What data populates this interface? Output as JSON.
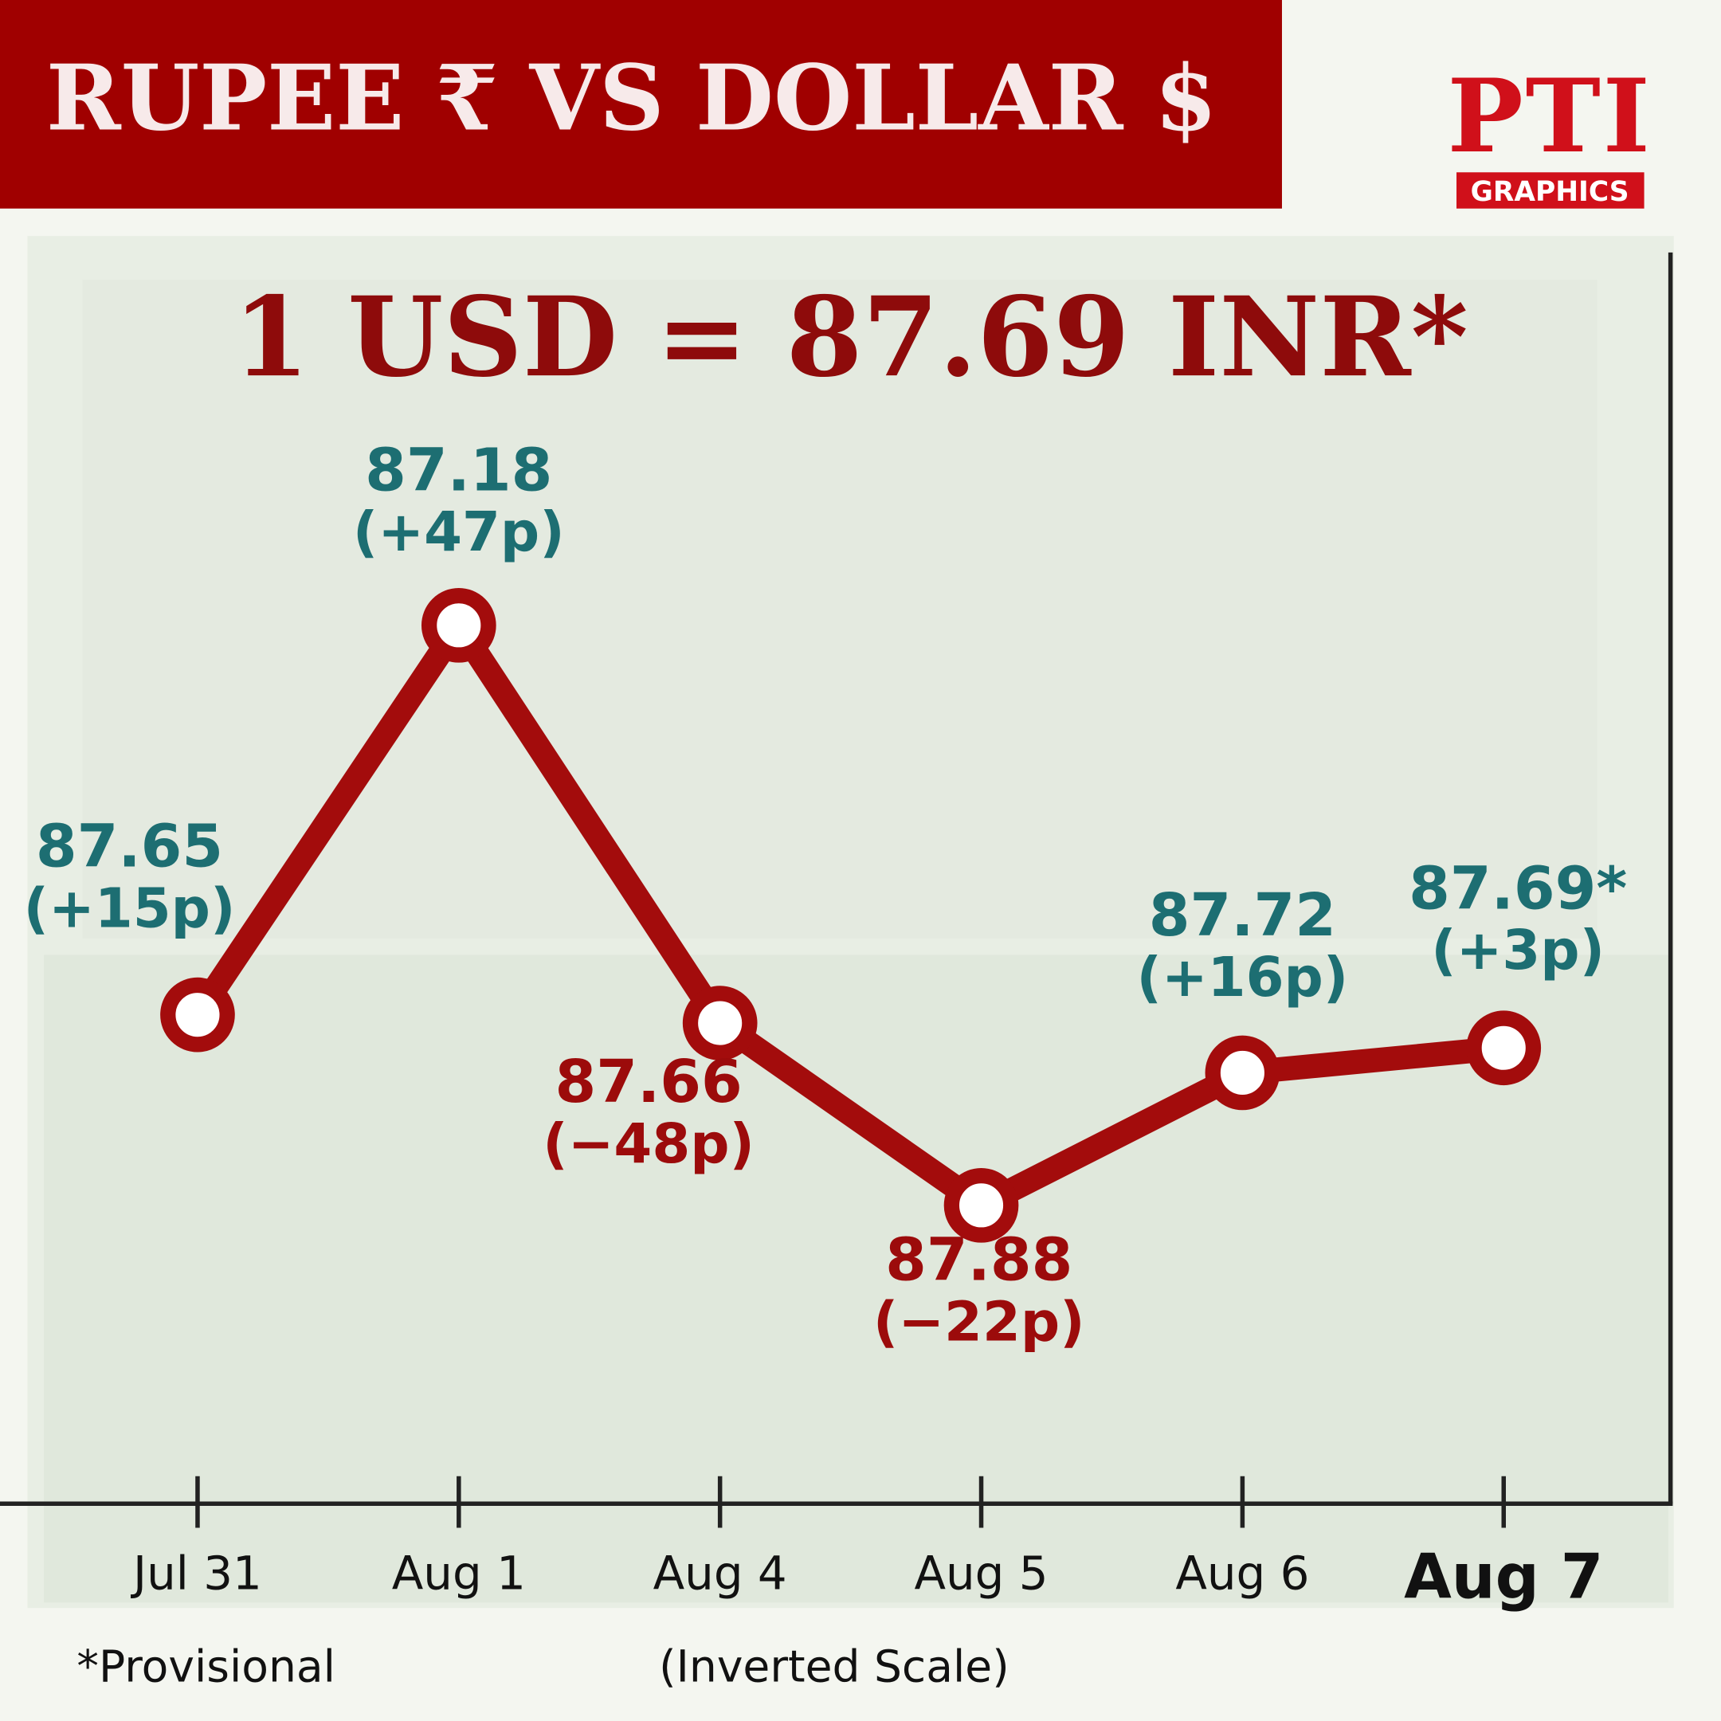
{
  "chart_data": {
    "type": "line",
    "title": "RUPEE ₹   VS   DOLLAR $",
    "headline": "1 USD = 87.69 INR*",
    "logo": {
      "text": "PTI",
      "caption": "GRAPHICS"
    },
    "categories": [
      "Jul 31",
      "Aug 1",
      "Aug 4",
      "Aug 5",
      "Aug 6",
      "Aug 7"
    ],
    "values": [
      87.65,
      87.18,
      87.66,
      87.88,
      87.72,
      87.69
    ],
    "value_labels": [
      "87.65",
      "87.18",
      "87.66",
      "87.88",
      "87.72",
      "87.69*"
    ],
    "changes": [
      "(+15p)",
      "(+47p)",
      "(−48p)",
      "(−22p)",
      "(+16p)",
      "(+3p)"
    ],
    "label_colors": [
      "#1d6e72",
      "#1d6e72",
      "#9c0b0b",
      "#9c0b0b",
      "#1d6e72",
      "#1d6e72"
    ],
    "color": "#a30c0c",
    "ylim": [
      88.24,
      86.73
    ],
    "y_inverted": true,
    "scale_note": "(Inverted Scale)",
    "footnote": "*Provisional"
  }
}
